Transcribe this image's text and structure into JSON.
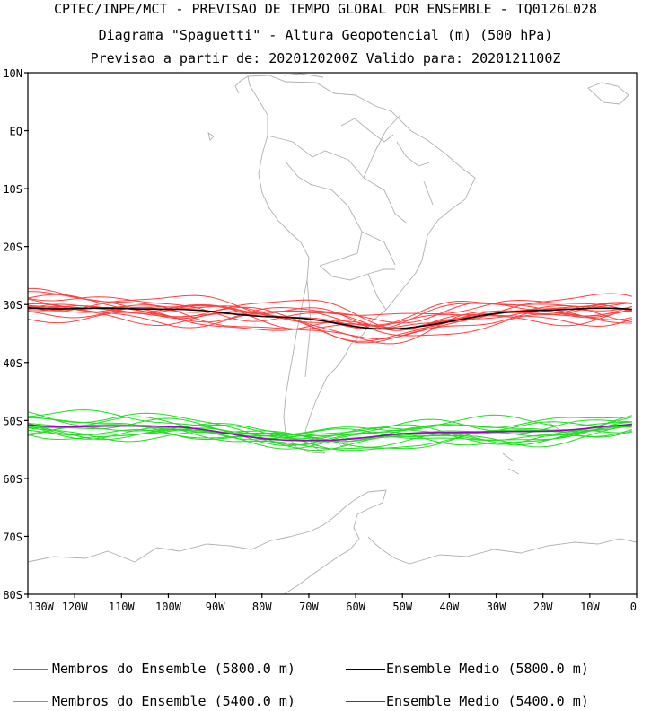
{
  "header": {
    "line1": "CPTEC/INPE/MCT - PREVISAO DE TEMPO GLOBAL POR ENSEMBLE - TQ0126L028",
    "line2": "Diagrama \"Spaguetti\" - Altura Geopotencial (m) (500 hPa)",
    "line3": "Previsao a partir de: 2020120200Z  Valido para: 2020121100Z"
  },
  "map": {
    "lat_labels": [
      "10N",
      "EQ",
      "10S",
      "20S",
      "30S",
      "40S",
      "50S",
      "60S",
      "70S",
      "80S"
    ],
    "lon_labels": [
      "130W",
      "120W",
      "110W",
      "100W",
      "90W",
      "80W",
      "70W",
      "60W",
      "50W",
      "40W",
      "30W",
      "20W",
      "10W",
      "0"
    ],
    "lat_range": [
      -80,
      10
    ],
    "lon_range": [
      -130,
      0
    ],
    "coastline_color": "#b0b0b0",
    "ensemble_5800_color": "#ff4040",
    "ensemble_5400_color": "#22dd22",
    "mean_5800_color": "#000000",
    "mean_5400_color": "#a000c8"
  },
  "legend": {
    "members_5800": "Membros do Ensemble (5800.0 m)",
    "mean_5800": "Ensemble Medio (5800.0 m)",
    "members_5400": "Membros do Ensemble (5400.0 m)",
    "mean_5400": "Ensemble Medio (5400.0 m)"
  }
}
